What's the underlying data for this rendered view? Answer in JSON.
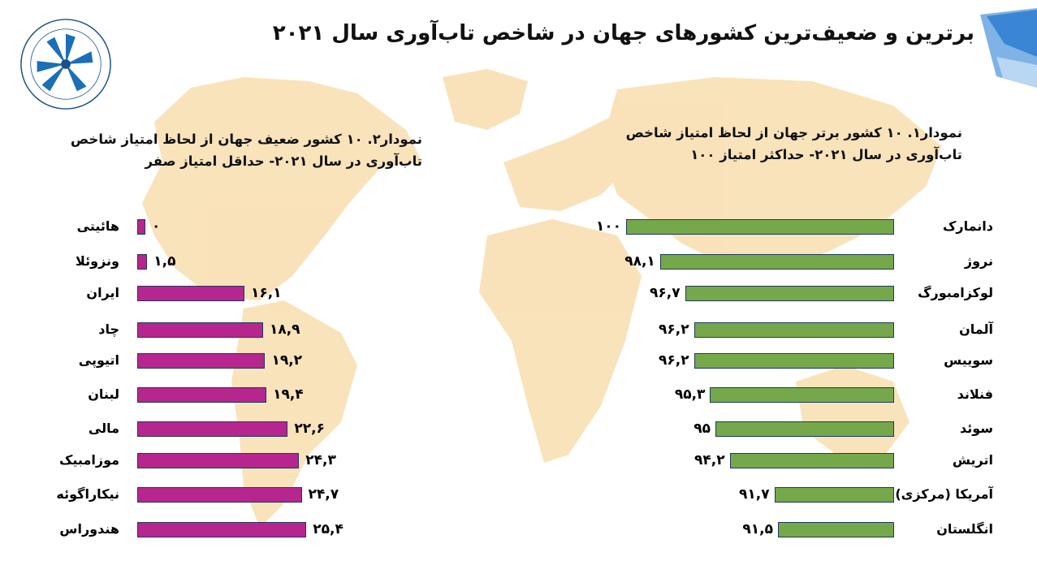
{
  "header": {
    "title": "برترین و ضعیف‌ترین کشورهای جهان در شاخص تاب‌آوری سال ۲۰۲۱",
    "logo_icon": "tehran-chamber-logo",
    "corner_icon": "blue-ribbon-corner",
    "background_icon": "world-map"
  },
  "colors": {
    "top_bars": "#74a84a",
    "bottom_bars": "#b7268f",
    "bar_border": "#1e3a5f",
    "map": "#f7d9a4"
  },
  "chart_data": [
    {
      "type": "bar",
      "orientation": "horizontal",
      "title": "نمودار۱. ۱۰ کشور برتر جهان از لحاظ امتیاز شاخص",
      "subtitle": "تاب‌آوری در سال ۲۰۲۱- حداکثر امتیاز ۱۰۰",
      "categories": [
        "دانمارک",
        "نروژ",
        "لوکزامبورگ",
        "آلمان",
        "سوییس",
        "فنلاند",
        "سوئد",
        "اتریش",
        "آمریکا (مرکزی)",
        "انگلستان"
      ],
      "values": [
        100,
        98.1,
        96.7,
        96.2,
        96.2,
        95.3,
        95,
        94.2,
        91.7,
        91.5
      ],
      "value_labels": [
        "۱۰۰",
        "۹۸,۱",
        "۹۶,۷",
        "۹۶,۲",
        "۹۶,۲",
        "۹۵,۳",
        "۹۵",
        "۹۴,۲",
        "۹۱,۷",
        "۹۱,۵"
      ],
      "bar_direction": "right-anchored",
      "color": "#74a84a"
    },
    {
      "type": "bar",
      "orientation": "horizontal",
      "title": "نمودار۲. ۱۰ کشور ضعیف جهان از لحاظ امتیاز شاخص",
      "subtitle": "تاب‌آوری  در سال ۲۰۲۱- حداقل امتیاز صفر",
      "categories": [
        "هائیتی",
        "ونزوئلا",
        "ایران",
        "چاد",
        "اتیوپی",
        "لبنان",
        "مالی",
        "موزامبیک",
        "نیکاراگوئه",
        "هندوراس"
      ],
      "values": [
        0,
        1.5,
        16.1,
        18.9,
        19.2,
        19.4,
        22.6,
        24.3,
        24.7,
        25.4
      ],
      "value_labels": [
        "۰",
        "۱,۵",
        "۱۶,۱",
        "۱۸,۹",
        "۱۹,۲",
        "۱۹,۴",
        "۲۲,۶",
        "۲۴,۳",
        "۲۴,۷",
        "۲۵,۴"
      ],
      "bar_direction": "left-anchored",
      "color": "#b7268f"
    }
  ]
}
